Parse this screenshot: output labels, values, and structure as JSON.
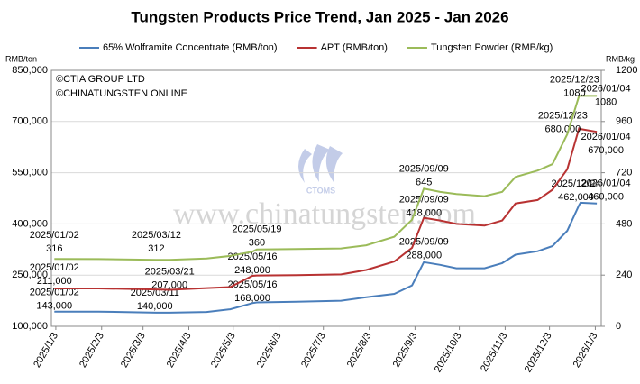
{
  "chart_data": {
    "type": "line",
    "title": "Tungsten Products Price Trend, Jan 2025 - Jan 2026",
    "y_label": "RMB/ton",
    "y2_label": "RMB/kg",
    "copyright": [
      "©CTIA GROUP LTD",
      "©CHINATUNGSTEN ONLINE"
    ],
    "watermark": "www.chinatungsten.com",
    "logo": "CTOMS",
    "x": [
      "2025/01/02",
      "2025/02/01",
      "2025/03/12",
      "2025/03/21",
      "2025/04/15",
      "2025/05/01",
      "2025/05/16",
      "2025/05/19",
      "2025/06/15",
      "2025/07/15",
      "2025/08/01",
      "2025/08/20",
      "2025/09/01",
      "2025/09/09",
      "2025/09/20",
      "2025/10/01",
      "2025/10/20",
      "2025/11/01",
      "2025/11/10",
      "2025/11/25",
      "2025/12/05",
      "2025/12/15",
      "2025/12/23",
      "2025/12/24",
      "2026/01/04"
    ],
    "xlim": [
      "2024/12/31",
      "2026/01/07"
    ],
    "xticks": [
      "2025/1/3",
      "2025/2/3",
      "2025/3/3",
      "2025/4/3",
      "2025/5/3",
      "2025/6/3",
      "2025/7/3",
      "2025/8/3",
      "2025/9/3",
      "2025/10/3",
      "2025/11/3",
      "2025/12/3",
      "2026/1/3"
    ],
    "ylim": [
      100000,
      850000
    ],
    "yticks": [
      {
        "value": 100000,
        "label": "100,000"
      },
      {
        "value": 250000,
        "label": "250,000"
      },
      {
        "value": 400000,
        "label": "400,000"
      },
      {
        "value": 550000,
        "label": "550,000"
      },
      {
        "value": 700000,
        "label": "700,000"
      },
      {
        "value": 850000,
        "label": "850,000"
      }
    ],
    "y2lim": [
      0,
      1200
    ],
    "y2ticks": [
      0,
      240,
      480,
      720,
      960,
      1200
    ],
    "grid": true,
    "legend": "top",
    "series": [
      {
        "name": "65% Wolframite Concentrate (RMB/ton)",
        "color": "#4a7ebb",
        "values": [
          143000,
          143000,
          140000,
          140000,
          142000,
          150000,
          168000,
          170000,
          172000,
          175000,
          185000,
          195000,
          220000,
          288000,
          280000,
          270000,
          270000,
          285000,
          310000,
          320000,
          335000,
          380000,
          455000,
          462000,
          460000
        ],
        "callouts": [
          {
            "date": "2025/01/02",
            "value": 143000,
            "value_label": "143,000"
          },
          {
            "date": "2025/03/11",
            "value": 140000,
            "value_label": "140,000"
          },
          {
            "date": "2025/05/16",
            "value": 168000,
            "value_label": "168,000"
          },
          {
            "date": "2025/09/09",
            "value": 288000,
            "value_label": "288,000"
          },
          {
            "date": "2025/12/24",
            "value": 462000,
            "value_label": "462,000"
          },
          {
            "date": "2026/01/04",
            "value": 460000,
            "value_label": "460,000"
          }
        ]
      },
      {
        "name": "APT (RMB/ton)",
        "color": "#b83232",
        "values": [
          211000,
          211000,
          208000,
          207000,
          212000,
          215000,
          248000,
          249000,
          250000,
          252000,
          265000,
          290000,
          330000,
          418000,
          410000,
          400000,
          395000,
          410000,
          460000,
          470000,
          500000,
          560000,
          680000,
          678000,
          670000
        ],
        "callouts": [
          {
            "date": "2025/01/02",
            "value": 211000,
            "value_label": "211,000"
          },
          {
            "date": "2025/03/21",
            "value": 207000,
            "value_label": "207,000"
          },
          {
            "date": "2025/05/16",
            "value": 248000,
            "value_label": "248,000"
          },
          {
            "date": "2025/09/09",
            "value": 418000,
            "value_label": "418,000"
          },
          {
            "date": "2025/12/23",
            "value": 680000,
            "value_label": "680,000"
          },
          {
            "date": "2026/01/04",
            "value": 670000,
            "value_label": "670,000"
          }
        ]
      },
      {
        "name": "Tungsten Powder (RMB/kg)",
        "color": "#9bbb59",
        "axis": "y2",
        "values": [
          316,
          315,
          312,
          312,
          318,
          330,
          350,
          360,
          362,
          365,
          380,
          420,
          500,
          645,
          630,
          620,
          610,
          630,
          700,
          730,
          760,
          900,
          1080,
          1080,
          1080
        ],
        "callouts": [
          {
            "date": "2025/01/02",
            "value": 316
          },
          {
            "date": "2025/03/12",
            "value": 312
          },
          {
            "date": "2025/05/19",
            "value": 360
          },
          {
            "date": "2025/09/09",
            "value": 645
          },
          {
            "date": "2025/12/23",
            "value": 1080
          },
          {
            "date": "2026/01/04",
            "value": 1080
          }
        ]
      }
    ]
  }
}
